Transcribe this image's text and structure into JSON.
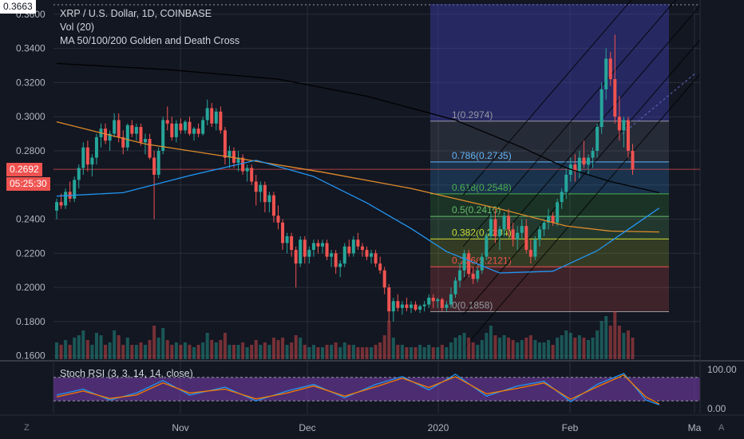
{
  "legend": {
    "title": "XRP / U.S. Dollar, 1D, COINBASE",
    "vol": "Vol (20)",
    "ma": "MA 50/100/200 Golden and Death Cross",
    "stoch": "Stoch RSI (3, 3, 14, 14, close)"
  },
  "price_axis": {
    "ticks": [
      "0.1600",
      "0.1800",
      "0.2000",
      "0.2200",
      "0.2400",
      "0.2600",
      "0.2800",
      "0.3000",
      "0.3200",
      "0.3400",
      "0.3600"
    ],
    "high_label": "0.3663",
    "last_price": "0.2692",
    "countdown": "05:25:30"
  },
  "stoch_axis": {
    "ticks": [
      "100.00",
      "0.00"
    ]
  },
  "time_axis": {
    "labels": [
      "Nov",
      "Dec",
      "2020",
      "Feb",
      "Ma"
    ]
  },
  "corner_labels": {
    "left": "Z",
    "right": "A"
  },
  "fib_levels": [
    {
      "label": "1(0.2974)",
      "value": 0.2974,
      "color": "#9598a1"
    },
    {
      "label": "0.786(0.2735)",
      "value": 0.2735,
      "color": "#64b5f6"
    },
    {
      "label": "0.618(0.2548)",
      "value": 0.2548,
      "color": "#4caf50"
    },
    {
      "label": "0.5(0.2416)",
      "value": 0.2416,
      "color": "#66bb6a"
    },
    {
      "label": "0.382(0.2284)",
      "value": 0.2284,
      "color": "#cddc39"
    },
    {
      "label": "0.236(0.2121)",
      "value": 0.2121,
      "color": "#ef5350"
    },
    {
      "label": "0(0.1858)",
      "value": 0.1858,
      "color": "#9598a1"
    }
  ],
  "colors": {
    "up": "#26a69a",
    "down": "#ef5350",
    "ma50": "#2196f3",
    "ma100": "#e08c2a",
    "ma200": "#000000",
    "stoch_k": "#2196f3",
    "stoch_d": "#f57c00",
    "stoch_band": "#7e3fb3",
    "bg": "#131722"
  },
  "chart_data": {
    "type": "candlestick",
    "y_range": [
      0.158,
      0.366
    ],
    "candles_ohlc": [
      [
        0.245,
        0.252,
        0.24,
        0.25
      ],
      [
        0.25,
        0.255,
        0.246,
        0.248
      ],
      [
        0.248,
        0.258,
        0.246,
        0.256
      ],
      [
        0.256,
        0.262,
        0.25,
        0.252
      ],
      [
        0.252,
        0.265,
        0.25,
        0.263
      ],
      [
        0.263,
        0.272,
        0.258,
        0.27
      ],
      [
        0.27,
        0.285,
        0.266,
        0.282
      ],
      [
        0.282,
        0.286,
        0.268,
        0.272
      ],
      [
        0.272,
        0.278,
        0.265,
        0.276
      ],
      [
        0.276,
        0.29,
        0.272,
        0.288
      ],
      [
        0.288,
        0.296,
        0.282,
        0.293
      ],
      [
        0.293,
        0.296,
        0.284,
        0.286
      ],
      [
        0.286,
        0.292,
        0.28,
        0.29
      ],
      [
        0.29,
        0.302,
        0.288,
        0.298
      ],
      [
        0.298,
        0.302,
        0.285,
        0.288
      ],
      [
        0.288,
        0.292,
        0.278,
        0.282
      ],
      [
        0.282,
        0.296,
        0.28,
        0.295
      ],
      [
        0.295,
        0.298,
        0.288,
        0.29
      ],
      [
        0.29,
        0.296,
        0.286,
        0.294
      ],
      [
        0.294,
        0.296,
        0.283,
        0.285
      ],
      [
        0.285,
        0.29,
        0.278,
        0.287
      ],
      [
        0.287,
        0.29,
        0.275,
        0.276
      ],
      [
        0.276,
        0.28,
        0.24,
        0.266
      ],
      [
        0.266,
        0.282,
        0.264,
        0.28
      ],
      [
        0.28,
        0.3,
        0.278,
        0.298
      ],
      [
        0.298,
        0.306,
        0.292,
        0.296
      ],
      [
        0.296,
        0.3,
        0.286,
        0.288
      ],
      [
        0.288,
        0.298,
        0.285,
        0.296
      ],
      [
        0.296,
        0.299,
        0.29,
        0.292
      ],
      [
        0.292,
        0.298,
        0.29,
        0.297
      ],
      [
        0.297,
        0.3,
        0.289,
        0.29
      ],
      [
        0.29,
        0.294,
        0.286,
        0.293
      ],
      [
        0.293,
        0.296,
        0.288,
        0.29
      ],
      [
        0.29,
        0.3,
        0.289,
        0.298
      ],
      [
        0.298,
        0.31,
        0.295,
        0.305
      ],
      [
        0.305,
        0.308,
        0.294,
        0.296
      ],
      [
        0.296,
        0.305,
        0.292,
        0.303
      ],
      [
        0.303,
        0.306,
        0.29,
        0.292
      ],
      [
        0.292,
        0.294,
        0.272,
        0.276
      ],
      [
        0.276,
        0.283,
        0.27,
        0.28
      ],
      [
        0.28,
        0.282,
        0.27,
        0.273
      ],
      [
        0.273,
        0.28,
        0.268,
        0.276
      ],
      [
        0.276,
        0.278,
        0.266,
        0.268
      ],
      [
        0.268,
        0.272,
        0.262,
        0.27
      ],
      [
        0.27,
        0.272,
        0.26,
        0.262
      ],
      [
        0.262,
        0.266,
        0.248,
        0.256
      ],
      [
        0.256,
        0.262,
        0.25,
        0.26
      ],
      [
        0.26,
        0.262,
        0.244,
        0.25
      ],
      [
        0.25,
        0.256,
        0.244,
        0.254
      ],
      [
        0.254,
        0.256,
        0.238,
        0.242
      ],
      [
        0.242,
        0.248,
        0.234,
        0.238
      ],
      [
        0.238,
        0.24,
        0.222,
        0.226
      ],
      [
        0.226,
        0.232,
        0.22,
        0.23
      ],
      [
        0.23,
        0.232,
        0.218,
        0.222
      ],
      [
        0.222,
        0.224,
        0.2,
        0.214
      ],
      [
        0.214,
        0.23,
        0.212,
        0.228
      ],
      [
        0.228,
        0.23,
        0.214,
        0.218
      ],
      [
        0.218,
        0.224,
        0.214,
        0.222
      ],
      [
        0.222,
        0.228,
        0.218,
        0.226
      ],
      [
        0.226,
        0.228,
        0.22,
        0.224
      ],
      [
        0.224,
        0.228,
        0.22,
        0.226
      ],
      [
        0.226,
        0.228,
        0.216,
        0.218
      ],
      [
        0.218,
        0.222,
        0.212,
        0.22
      ],
      [
        0.22,
        0.222,
        0.208,
        0.212
      ],
      [
        0.212,
        0.216,
        0.206,
        0.214
      ],
      [
        0.214,
        0.226,
        0.212,
        0.224
      ],
      [
        0.224,
        0.228,
        0.218,
        0.22
      ],
      [
        0.22,
        0.23,
        0.218,
        0.228
      ],
      [
        0.228,
        0.232,
        0.222,
        0.224
      ],
      [
        0.224,
        0.226,
        0.218,
        0.222
      ],
      [
        0.222,
        0.224,
        0.216,
        0.218
      ],
      [
        0.218,
        0.222,
        0.214,
        0.22
      ],
      [
        0.22,
        0.222,
        0.212,
        0.214
      ],
      [
        0.214,
        0.218,
        0.208,
        0.21
      ],
      [
        0.21,
        0.212,
        0.196,
        0.2
      ],
      [
        0.2,
        0.202,
        0.18,
        0.186
      ],
      [
        0.186,
        0.194,
        0.18,
        0.192
      ],
      [
        0.192,
        0.196,
        0.186,
        0.188
      ],
      [
        0.188,
        0.192,
        0.184,
        0.19
      ],
      [
        0.19,
        0.194,
        0.186,
        0.188
      ],
      [
        0.188,
        0.192,
        0.185,
        0.19
      ],
      [
        0.19,
        0.192,
        0.186,
        0.187
      ],
      [
        0.187,
        0.19,
        0.185,
        0.189
      ],
      [
        0.189,
        0.192,
        0.186,
        0.19
      ],
      [
        0.19,
        0.196,
        0.188,
        0.194
      ],
      [
        0.194,
        0.196,
        0.188,
        0.192
      ],
      [
        0.192,
        0.194,
        0.188,
        0.193
      ],
      [
        0.193,
        0.194,
        0.186,
        0.188
      ],
      [
        0.188,
        0.192,
        0.186,
        0.19
      ],
      [
        0.19,
        0.2,
        0.188,
        0.196
      ],
      [
        0.196,
        0.206,
        0.194,
        0.204
      ],
      [
        0.204,
        0.214,
        0.2,
        0.21
      ],
      [
        0.21,
        0.222,
        0.206,
        0.22
      ],
      [
        0.22,
        0.222,
        0.206,
        0.208
      ],
      [
        0.208,
        0.212,
        0.202,
        0.205
      ],
      [
        0.205,
        0.212,
        0.203,
        0.21
      ],
      [
        0.21,
        0.22,
        0.208,
        0.218
      ],
      [
        0.218,
        0.232,
        0.216,
        0.23
      ],
      [
        0.23,
        0.244,
        0.228,
        0.24
      ],
      [
        0.24,
        0.246,
        0.226,
        0.23
      ],
      [
        0.23,
        0.236,
        0.222,
        0.234
      ],
      [
        0.234,
        0.244,
        0.23,
        0.242
      ],
      [
        0.242,
        0.246,
        0.23,
        0.234
      ],
      [
        0.234,
        0.238,
        0.224,
        0.228
      ],
      [
        0.228,
        0.236,
        0.222,
        0.232
      ],
      [
        0.232,
        0.24,
        0.228,
        0.236
      ],
      [
        0.236,
        0.24,
        0.22,
        0.222
      ],
      [
        0.222,
        0.228,
        0.214,
        0.218
      ],
      [
        0.218,
        0.23,
        0.216,
        0.228
      ],
      [
        0.228,
        0.236,
        0.224,
        0.234
      ],
      [
        0.234,
        0.24,
        0.23,
        0.238
      ],
      [
        0.238,
        0.246,
        0.234,
        0.242
      ],
      [
        0.242,
        0.244,
        0.236,
        0.238
      ],
      [
        0.238,
        0.252,
        0.236,
        0.25
      ],
      [
        0.25,
        0.258,
        0.246,
        0.256
      ],
      [
        0.256,
        0.27,
        0.252,
        0.266
      ],
      [
        0.266,
        0.276,
        0.262,
        0.272
      ],
      [
        0.272,
        0.278,
        0.262,
        0.268
      ],
      [
        0.268,
        0.28,
        0.264,
        0.276
      ],
      [
        0.276,
        0.286,
        0.27,
        0.272
      ],
      [
        0.272,
        0.278,
        0.266,
        0.276
      ],
      [
        0.276,
        0.282,
        0.27,
        0.28
      ],
      [
        0.28,
        0.296,
        0.276,
        0.294
      ],
      [
        0.294,
        0.32,
        0.29,
        0.316
      ],
      [
        0.316,
        0.34,
        0.31,
        0.334
      ],
      [
        0.334,
        0.338,
        0.318,
        0.322
      ],
      [
        0.322,
        0.348,
        0.296,
        0.3
      ],
      [
        0.3,
        0.312,
        0.286,
        0.292
      ],
      [
        0.292,
        0.3,
        0.282,
        0.298
      ],
      [
        0.298,
        0.3,
        0.276,
        0.28
      ],
      [
        0.28,
        0.284,
        0.266,
        0.2692
      ]
    ],
    "volume_rel": [
      0.35,
      0.3,
      0.4,
      0.3,
      0.45,
      0.5,
      0.6,
      0.4,
      0.3,
      0.55,
      0.5,
      0.3,
      0.35,
      0.6,
      0.5,
      0.3,
      0.45,
      0.3,
      0.3,
      0.35,
      0.3,
      0.4,
      0.7,
      0.45,
      0.65,
      0.4,
      0.3,
      0.35,
      0.3,
      0.35,
      0.3,
      0.25,
      0.3,
      0.35,
      0.55,
      0.4,
      0.35,
      0.4,
      0.55,
      0.3,
      0.3,
      0.3,
      0.35,
      0.25,
      0.3,
      0.4,
      0.3,
      0.35,
      0.3,
      0.45,
      0.4,
      0.45,
      0.3,
      0.35,
      0.5,
      0.45,
      0.3,
      0.25,
      0.3,
      0.25,
      0.25,
      0.3,
      0.3,
      0.35,
      0.25,
      0.35,
      0.3,
      0.3,
      0.25,
      0.25,
      0.25,
      0.25,
      0.3,
      0.35,
      0.5,
      0.8,
      0.45,
      0.3,
      0.3,
      0.25,
      0.25,
      0.25,
      0.3,
      0.25,
      0.3,
      0.25,
      0.25,
      0.3,
      0.25,
      0.35,
      0.45,
      0.5,
      0.55,
      0.45,
      0.35,
      0.3,
      0.4,
      0.55,
      0.7,
      0.5,
      0.45,
      0.5,
      0.45,
      0.4,
      0.35,
      0.4,
      0.45,
      0.5,
      0.4,
      0.35,
      0.35,
      0.4,
      0.3,
      0.45,
      0.5,
      0.6,
      0.55,
      0.45,
      0.5,
      0.45,
      0.4,
      0.45,
      0.6,
      0.8,
      0.9,
      0.7,
      1.0,
      0.7,
      0.55,
      0.6,
      0.45
    ],
    "ma200_points": [
      [
        0,
        0.3312
      ],
      [
        25,
        0.3276
      ],
      [
        50,
        0.322
      ],
      [
        70,
        0.312
      ],
      [
        90,
        0.298
      ],
      [
        105,
        0.282
      ],
      [
        115,
        0.27
      ],
      [
        125,
        0.262
      ],
      [
        136,
        0.2555
      ]
    ],
    "ma100_points": [
      [
        0,
        0.297
      ],
      [
        20,
        0.284
      ],
      [
        40,
        0.276
      ],
      [
        60,
        0.2675
      ],
      [
        80,
        0.258
      ],
      [
        100,
        0.246
      ],
      [
        115,
        0.236
      ],
      [
        125,
        0.233
      ],
      [
        136,
        0.2325
      ]
    ],
    "ma50_points": [
      [
        0,
        0.2535
      ],
      [
        15,
        0.2555
      ],
      [
        30,
        0.2655
      ],
      [
        45,
        0.2745
      ],
      [
        58,
        0.265
      ],
      [
        70,
        0.2495
      ],
      [
        80,
        0.2345
      ],
      [
        88,
        0.221
      ],
      [
        100,
        0.2085
      ],
      [
        112,
        0.2095
      ],
      [
        122,
        0.2215
      ],
      [
        136,
        0.2465
      ]
    ],
    "stoch_k_points": [
      [
        0,
        35
      ],
      [
        6,
        50
      ],
      [
        12,
        22
      ],
      [
        18,
        40
      ],
      [
        24,
        72
      ],
      [
        30,
        35
      ],
      [
        38,
        55
      ],
      [
        45,
        20
      ],
      [
        52,
        45
      ],
      [
        58,
        62
      ],
      [
        65,
        28
      ],
      [
        72,
        62
      ],
      [
        78,
        82
      ],
      [
        84,
        48
      ],
      [
        90,
        88
      ],
      [
        97,
        32
      ],
      [
        104,
        58
      ],
      [
        110,
        70
      ],
      [
        116,
        18
      ],
      [
        122,
        62
      ],
      [
        128,
        90
      ],
      [
        133,
        22
      ],
      [
        136,
        10
      ]
    ],
    "stoch_d_points": [
      [
        0,
        30
      ],
      [
        6,
        45
      ],
      [
        12,
        26
      ],
      [
        18,
        35
      ],
      [
        24,
        66
      ],
      [
        30,
        40
      ],
      [
        38,
        50
      ],
      [
        45,
        25
      ],
      [
        52,
        40
      ],
      [
        58,
        58
      ],
      [
        65,
        32
      ],
      [
        72,
        56
      ],
      [
        78,
        78
      ],
      [
        84,
        54
      ],
      [
        90,
        82
      ],
      [
        97,
        38
      ],
      [
        104,
        52
      ],
      [
        110,
        66
      ],
      [
        116,
        24
      ],
      [
        122,
        56
      ],
      [
        128,
        86
      ],
      [
        133,
        30
      ],
      [
        136,
        12
      ]
    ],
    "stoch_range": [
      0,
      100
    ]
  }
}
